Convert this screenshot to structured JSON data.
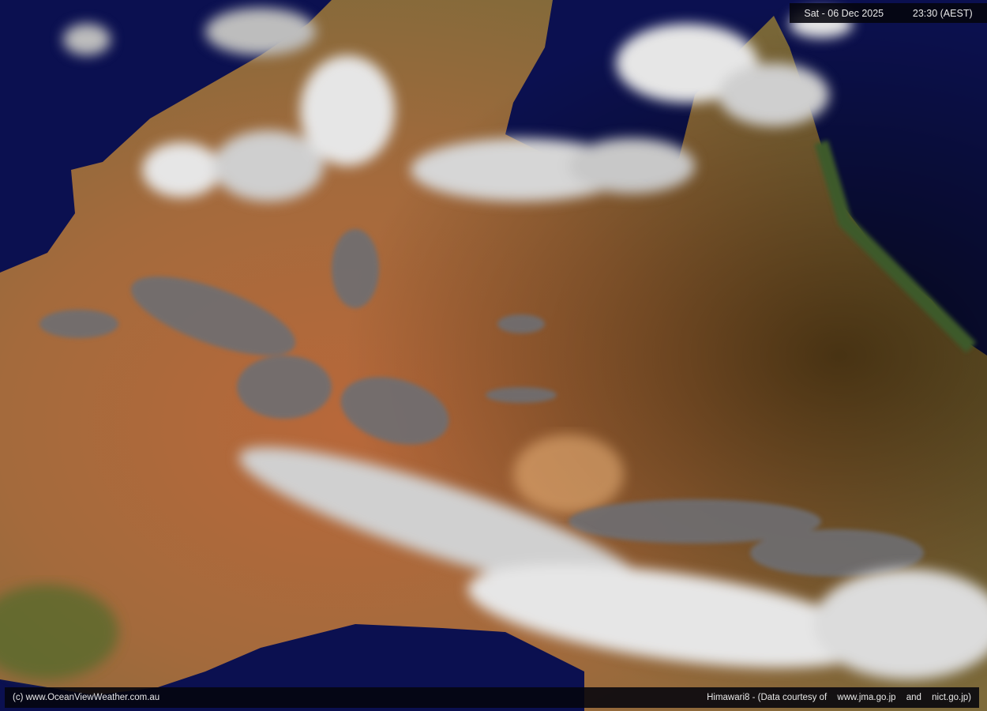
{
  "header": {
    "date": "Sat - 06 Dec 2025",
    "time": "23:30 (AEST)"
  },
  "footer": {
    "credit": "(c) www.OceanViewWeather.com.au",
    "satellite": "Himawari8  -  (Data courtesy of",
    "source_1": "www.jma.go.jp",
    "conjunction": "and",
    "source_2": "nict.go.jp)"
  },
  "colors": {
    "ocean": "#0b1050",
    "land": "#a86a3a",
    "cloud": "#e6e6e6",
    "low_cloud": "#6e6e72"
  }
}
